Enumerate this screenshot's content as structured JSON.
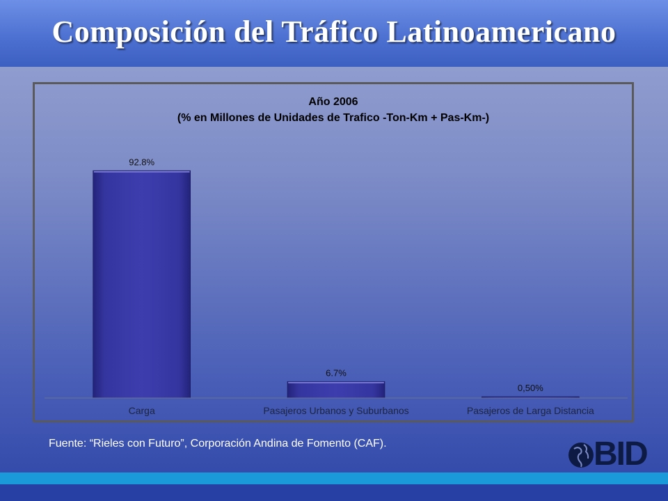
{
  "slide": {
    "title": "Composición del Tráfico Latinoamericano",
    "source": "Fuente: “Rieles con Futuro”, Corporación Andina de Fomento (CAF).",
    "logo_text": "BID"
  },
  "chart_data": {
    "type": "bar",
    "title": "Año 2006",
    "subtitle": "(% en Millones de Unidades de Trafico -Ton-Km + Pas-Km-)",
    "categories": [
      "Carga",
      "Pasajeros Urbanos y Suburbanos",
      "Pasajeros de Larga Distancia"
    ],
    "values": [
      92.8,
      6.7,
      0.5
    ],
    "data_labels": [
      "92.8%",
      "6.7%",
      "0,50%"
    ],
    "ylim": [
      0,
      100
    ],
    "grid": false,
    "legend": "none",
    "bar_color": "#3a3aa8"
  }
}
